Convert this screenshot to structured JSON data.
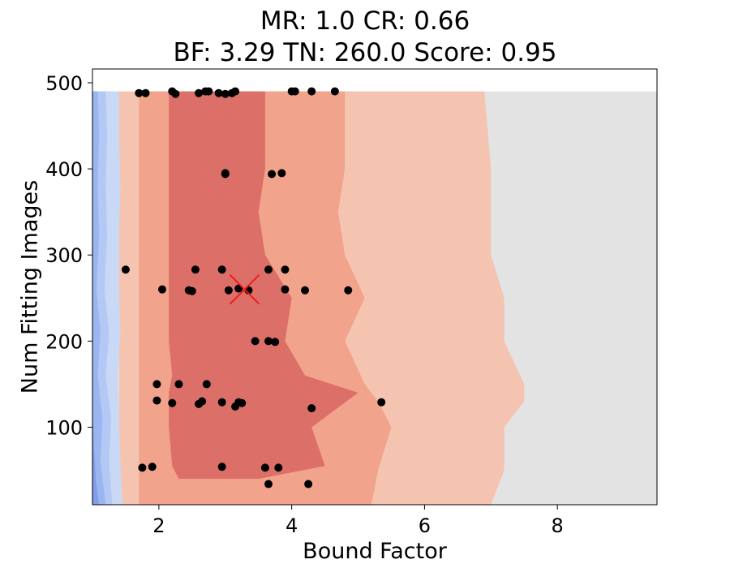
{
  "chart_data": {
    "type": "scatter",
    "title_line1": "MR: 1.0  CR: 0.66",
    "title_line2": "BF: 3.29  TN: 260.0  Score: 0.95",
    "xlabel": "Bound Factor",
    "ylabel": "Num Fitting Images",
    "xlim": [
      1.0,
      9.5
    ],
    "ylim": [
      10,
      516
    ],
    "grid": false,
    "legend": "none",
    "x_ticks": [
      2,
      4,
      6,
      8
    ],
    "y_ticks": [
      100,
      200,
      300,
      400,
      500
    ],
    "contour_extent": {
      "x": [
        1.0,
        9.5
      ],
      "y": [
        10,
        490
      ]
    },
    "colors": {
      "background": "#e3e3e3",
      "level_1": "#f5c4b0",
      "level_2": "#f1a38c",
      "level_3": "#dc6f68",
      "cool_1": "#c9d8f5",
      "cool_2": "#b3c8f4",
      "cool_3": "#9bb5f1",
      "cool_4": "#839ee8",
      "points": "#000000",
      "best_marker": "#ee1c1c"
    },
    "contour_levels": [
      {
        "level": "level_1",
        "left_x": [
          1.4,
          1.4,
          1.4,
          1.4,
          1.4,
          1.4,
          1.4,
          1.4,
          1.4,
          1.4,
          1.4
        ],
        "right_x": [
          7.0,
          7.2,
          7.2,
          7.5,
          7.5,
          7.2,
          7.2,
          7.0,
          7.0,
          7.0,
          6.9
        ],
        "y": [
          10,
          50,
          100,
          130,
          150,
          200,
          250,
          300,
          350,
          400,
          490
        ]
      },
      {
        "level": "level_2",
        "left_x": [
          1.7,
          1.7,
          1.7,
          1.7,
          1.7,
          1.7,
          1.7,
          1.7,
          1.7,
          1.7,
          1.7
        ],
        "right_x": [
          5.2,
          5.3,
          5.5,
          5.3,
          5.1,
          4.8,
          5.1,
          4.8,
          4.7,
          4.8,
          4.8
        ],
        "y": [
          10,
          50,
          100,
          130,
          150,
          200,
          250,
          300,
          350,
          400,
          490
        ]
      },
      {
        "level": "level_3",
        "left_x": [
          2.3,
          2.2,
          2.15,
          2.15,
          2.2,
          2.15,
          2.15,
          2.15,
          2.15,
          2.15,
          2.15
        ],
        "right_x": [
          3.5,
          4.5,
          4.3,
          5.0,
          4.2,
          3.9,
          4.0,
          3.6,
          3.5,
          3.6,
          3.6
        ],
        "y": [
          40,
          55,
          100,
          140,
          160,
          200,
          250,
          300,
          350,
          400,
          490
        ]
      }
    ],
    "cool_levels": [
      {
        "level": "cool_1",
        "right_x": [
          1.45,
          1.42,
          1.4,
          1.38,
          1.42,
          1.4,
          1.4,
          1.42,
          1.4,
          1.4
        ],
        "y": [
          10,
          60,
          110,
          160,
          210,
          260,
          320,
          380,
          440,
          490
        ]
      },
      {
        "level": "cool_2",
        "right_x": [
          1.3,
          1.25,
          1.28,
          1.2,
          1.25,
          1.18,
          1.22,
          1.2,
          1.22,
          1.2
        ],
        "y": [
          10,
          60,
          110,
          160,
          210,
          260,
          320,
          380,
          440,
          490
        ]
      },
      {
        "level": "cool_3",
        "right_x": [
          1.2,
          1.12,
          1.15,
          1.08,
          1.12,
          1.06,
          1.1,
          1.08,
          1.1,
          1.08
        ],
        "y": [
          10,
          60,
          110,
          160,
          210,
          260,
          320,
          380,
          440,
          490
        ]
      },
      {
        "level": "cool_4",
        "right_x": [
          1.1,
          1.05,
          1.02,
          1.0,
          1.0,
          1.0,
          1.0,
          1.0,
          1.0,
          1.0
        ],
        "y": [
          10,
          40,
          80,
          120,
          160,
          200,
          260,
          320,
          400,
          490
        ]
      }
    ],
    "points": [
      {
        "x": 1.7,
        "y": 488
      },
      {
        "x": 1.8,
        "y": 488
      },
      {
        "x": 2.2,
        "y": 490
      },
      {
        "x": 2.25,
        "y": 487
      },
      {
        "x": 2.6,
        "y": 488
      },
      {
        "x": 2.7,
        "y": 490
      },
      {
        "x": 2.75,
        "y": 490
      },
      {
        "x": 2.9,
        "y": 488
      },
      {
        "x": 3.0,
        "y": 487
      },
      {
        "x": 3.1,
        "y": 488
      },
      {
        "x": 3.15,
        "y": 490
      },
      {
        "x": 4.0,
        "y": 490
      },
      {
        "x": 4.05,
        "y": 490
      },
      {
        "x": 4.3,
        "y": 490
      },
      {
        "x": 4.65,
        "y": 490
      },
      {
        "x": 3.0,
        "y": 395
      },
      {
        "x": 3.0,
        "y": 394
      },
      {
        "x": 3.7,
        "y": 394
      },
      {
        "x": 3.85,
        "y": 395
      },
      {
        "x": 1.5,
        "y": 283
      },
      {
        "x": 2.55,
        "y": 283
      },
      {
        "x": 2.95,
        "y": 283
      },
      {
        "x": 3.65,
        "y": 283
      },
      {
        "x": 3.9,
        "y": 283
      },
      {
        "x": 2.05,
        "y": 260
      },
      {
        "x": 2.45,
        "y": 259
      },
      {
        "x": 2.5,
        "y": 258
      },
      {
        "x": 3.05,
        "y": 259
      },
      {
        "x": 3.2,
        "y": 261
      },
      {
        "x": 3.35,
        "y": 259
      },
      {
        "x": 3.9,
        "y": 260
      },
      {
        "x": 4.2,
        "y": 259
      },
      {
        "x": 4.85,
        "y": 259
      },
      {
        "x": 3.45,
        "y": 200
      },
      {
        "x": 3.65,
        "y": 200
      },
      {
        "x": 3.75,
        "y": 199
      },
      {
        "x": 1.97,
        "y": 150
      },
      {
        "x": 2.3,
        "y": 150
      },
      {
        "x": 2.72,
        "y": 150
      },
      {
        "x": 1.97,
        "y": 131
      },
      {
        "x": 2.2,
        "y": 128
      },
      {
        "x": 2.6,
        "y": 127
      },
      {
        "x": 2.65,
        "y": 130
      },
      {
        "x": 2.95,
        "y": 129
      },
      {
        "x": 3.15,
        "y": 124
      },
      {
        "x": 3.2,
        "y": 129
      },
      {
        "x": 3.25,
        "y": 128
      },
      {
        "x": 4.3,
        "y": 122
      },
      {
        "x": 5.35,
        "y": 129
      },
      {
        "x": 1.75,
        "y": 53
      },
      {
        "x": 1.9,
        "y": 54
      },
      {
        "x": 2.95,
        "y": 54
      },
      {
        "x": 3.6,
        "y": 53
      },
      {
        "x": 3.8,
        "y": 53
      },
      {
        "x": 3.65,
        "y": 34
      },
      {
        "x": 4.25,
        "y": 34
      }
    ],
    "best": {
      "x": 3.29,
      "y": 260.0
    }
  }
}
